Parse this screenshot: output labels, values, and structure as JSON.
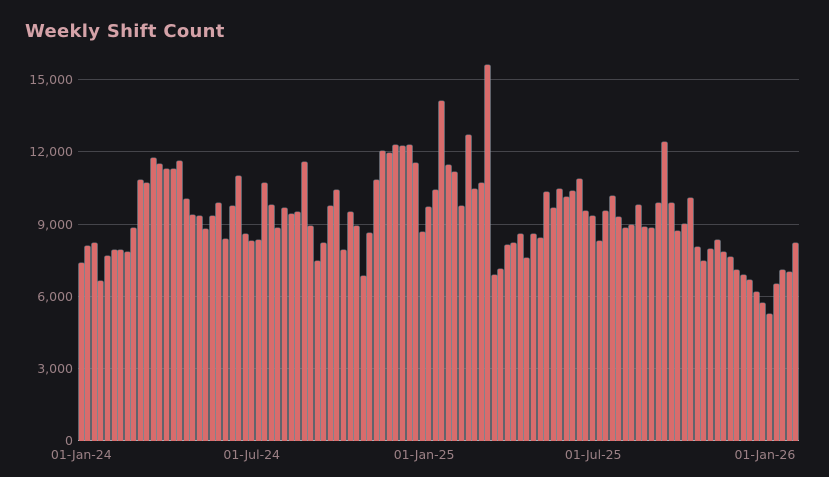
{
  "chart": {
    "title": "Weekly Shift Count"
  },
  "colors": {
    "background": "#16161a",
    "bar": "#d96c6c",
    "bar_edge": "#9499a3",
    "grid": "#45454b",
    "baseline": "#c9c9cc",
    "title": "#d4a2a8",
    "tick": "#9c8186"
  },
  "chart_data": {
    "type": "bar",
    "title": "Weekly Shift Count",
    "xlabel": "",
    "ylabel": "",
    "x_interval": "weekly",
    "x_start": "01-Jan-24",
    "ylim": [
      0,
      15000
    ],
    "grid": "horizontal",
    "legend": "none",
    "yticks": [
      0,
      3000,
      6000,
      9000,
      12000,
      15000
    ],
    "ytick_labels": [
      "0",
      "3,000",
      "6,000",
      "9,000",
      "12,000",
      "15,000"
    ],
    "x_ticks": [
      {
        "label": "01-Jan-24",
        "week": 0
      },
      {
        "label": "01-Jul-24",
        "week": 26.0
      },
      {
        "label": "01-Jan-25",
        "week": 52.3
      },
      {
        "label": "01-Jul-25",
        "week": 78.1
      },
      {
        "label": "01-Jan-26",
        "week": 104.3
      }
    ],
    "values": [
      7400,
      8100,
      8230,
      6650,
      7700,
      7940,
      7960,
      7850,
      8860,
      10870,
      10710,
      11770,
      11500,
      11310,
      11330,
      11660,
      10070,
      9380,
      9350,
      8820,
      9350,
      9880,
      8380,
      9790,
      11040,
      8590,
      8330,
      8350,
      10730,
      9830,
      8860,
      9690,
      9450,
      9510,
      11590,
      8960,
      7470,
      8240,
      9790,
      10430,
      7960,
      9510,
      8960,
      6850,
      8670,
      10840,
      12070,
      11980,
      12320,
      12280,
      12320,
      11560,
      8680,
      9720,
      10430,
      14120,
      11490,
      11190,
      9760,
      12740,
      10480,
      10730,
      15650,
      6920,
      7160,
      8140,
      8240,
      8620,
      7610,
      8620,
      8440,
      10340,
      9690,
      10480,
      10130,
      10380,
      10890,
      9550,
      9340,
      8300,
      9580,
      10200,
      9330,
      8860,
      9000,
      9800,
      8880,
      8860,
      9900,
      12420,
      9900,
      8720,
      9030,
      10110,
      8050,
      7500,
      7990,
      8370,
      7850,
      7650,
      7130,
      6920,
      6710,
      6180,
      5740,
      5280,
      6540,
      7130,
      7010,
      8230
    ]
  }
}
